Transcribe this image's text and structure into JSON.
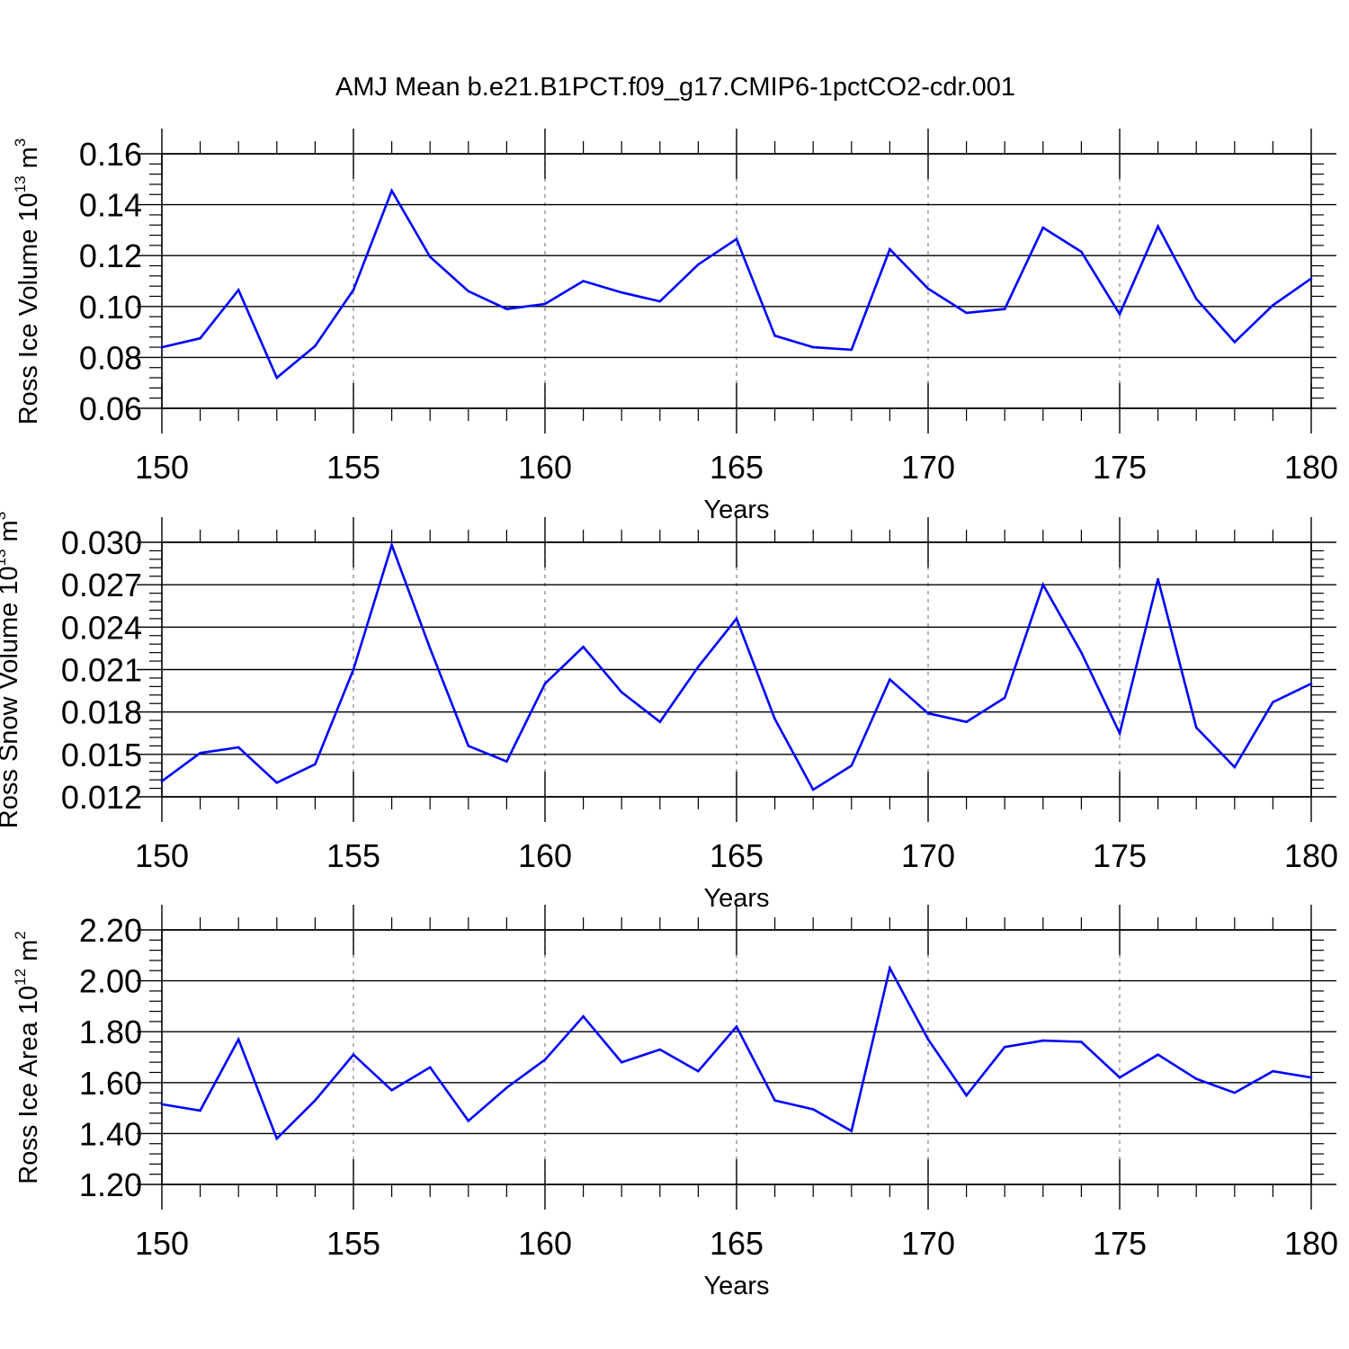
{
  "title": "AMJ Mean b.e21.B1PCT.f09_g17.CMIP6-1pctCO2-cdr.001",
  "colors": {
    "line": "#0000ff",
    "axis": "#000000",
    "grid": "#808080"
  },
  "chart_data": [
    {
      "type": "line",
      "ylabel": {
        "text": "Ross Ice Volume 10",
        "exponent": "13",
        "unit": " m",
        "unit_exponent": "3"
      },
      "xlabel": "Years",
      "xlim": [
        150,
        180
      ],
      "ylim": [
        0.06,
        0.16
      ],
      "xticks": [
        "150",
        "155",
        "160",
        "165",
        "170",
        "175",
        "180"
      ],
      "yticks": [
        "0.06",
        "0.08",
        "0.10",
        "0.12",
        "0.14",
        "0.16"
      ],
      "grid": "vertical dashed at major x ticks",
      "x": [
        150,
        151,
        152,
        153,
        154,
        155,
        156,
        157,
        158,
        159,
        160,
        161,
        162,
        163,
        164,
        165,
        166,
        167,
        168,
        169,
        170,
        171,
        172,
        173,
        174,
        175,
        176,
        177,
        178,
        179,
        180
      ],
      "values": [
        0.084,
        0.0875,
        0.1065,
        0.072,
        0.0845,
        0.1065,
        0.1455,
        0.1195,
        0.106,
        0.099,
        0.101,
        0.11,
        0.1055,
        0.102,
        0.1165,
        0.1265,
        0.0885,
        0.084,
        0.083,
        0.1225,
        0.107,
        0.0975,
        0.099,
        0.131,
        0.1215,
        0.097,
        0.1315,
        0.103,
        0.086,
        0.1005,
        0.111
      ]
    },
    {
      "type": "line",
      "ylabel": {
        "text": "Ross Snow Volume 10",
        "exponent": "13",
        "unit": " m",
        "unit_exponent": "3"
      },
      "xlabel": "Years",
      "xlim": [
        150,
        180
      ],
      "ylim": [
        0.012,
        0.03
      ],
      "xticks": [
        "150",
        "155",
        "160",
        "165",
        "170",
        "175",
        "180"
      ],
      "yticks": [
        "0.012",
        "0.015",
        "0.018",
        "0.021",
        "0.024",
        "0.027",
        "0.030"
      ],
      "grid": "vertical dashed at major x ticks",
      "x": [
        150,
        151,
        152,
        153,
        154,
        155,
        156,
        157,
        158,
        159,
        160,
        161,
        162,
        163,
        164,
        165,
        166,
        167,
        168,
        169,
        170,
        171,
        172,
        173,
        174,
        175,
        176,
        177,
        178,
        179,
        180
      ],
      "values": [
        0.0131,
        0.0151,
        0.0155,
        0.013,
        0.0143,
        0.021,
        0.0298,
        0.0225,
        0.0156,
        0.0145,
        0.02,
        0.0226,
        0.0194,
        0.0173,
        0.0212,
        0.0246,
        0.0175,
        0.0125,
        0.0142,
        0.0203,
        0.0179,
        0.0173,
        0.019,
        0.027,
        0.0222,
        0.0165,
        0.0274,
        0.0169,
        0.0141,
        0.0187,
        0.02
      ]
    },
    {
      "type": "line",
      "ylabel": {
        "text": "Ross Ice Area 10",
        "exponent": "12",
        "unit": " m",
        "unit_exponent": "2"
      },
      "xlabel": "Years",
      "xlim": [
        150,
        180
      ],
      "ylim": [
        1.2,
        2.2
      ],
      "xticks": [
        "150",
        "155",
        "160",
        "165",
        "170",
        "175",
        "180"
      ],
      "yticks": [
        "1.20",
        "1.40",
        "1.60",
        "1.80",
        "2.00",
        "2.20"
      ],
      "grid": "vertical dashed at major x ticks",
      "x": [
        150,
        151,
        152,
        153,
        154,
        155,
        156,
        157,
        158,
        159,
        160,
        161,
        162,
        163,
        164,
        165,
        166,
        167,
        168,
        169,
        170,
        171,
        172,
        173,
        174,
        175,
        176,
        177,
        178,
        179,
        180
      ],
      "values": [
        1.515,
        1.49,
        1.77,
        1.38,
        1.53,
        1.71,
        1.57,
        1.66,
        1.45,
        1.58,
        1.69,
        1.86,
        1.68,
        1.73,
        1.645,
        1.82,
        1.53,
        1.495,
        1.41,
        2.05,
        1.77,
        1.55,
        1.74,
        1.765,
        1.76,
        1.62,
        1.71,
        1.615,
        1.56,
        1.645,
        1.62
      ]
    }
  ]
}
